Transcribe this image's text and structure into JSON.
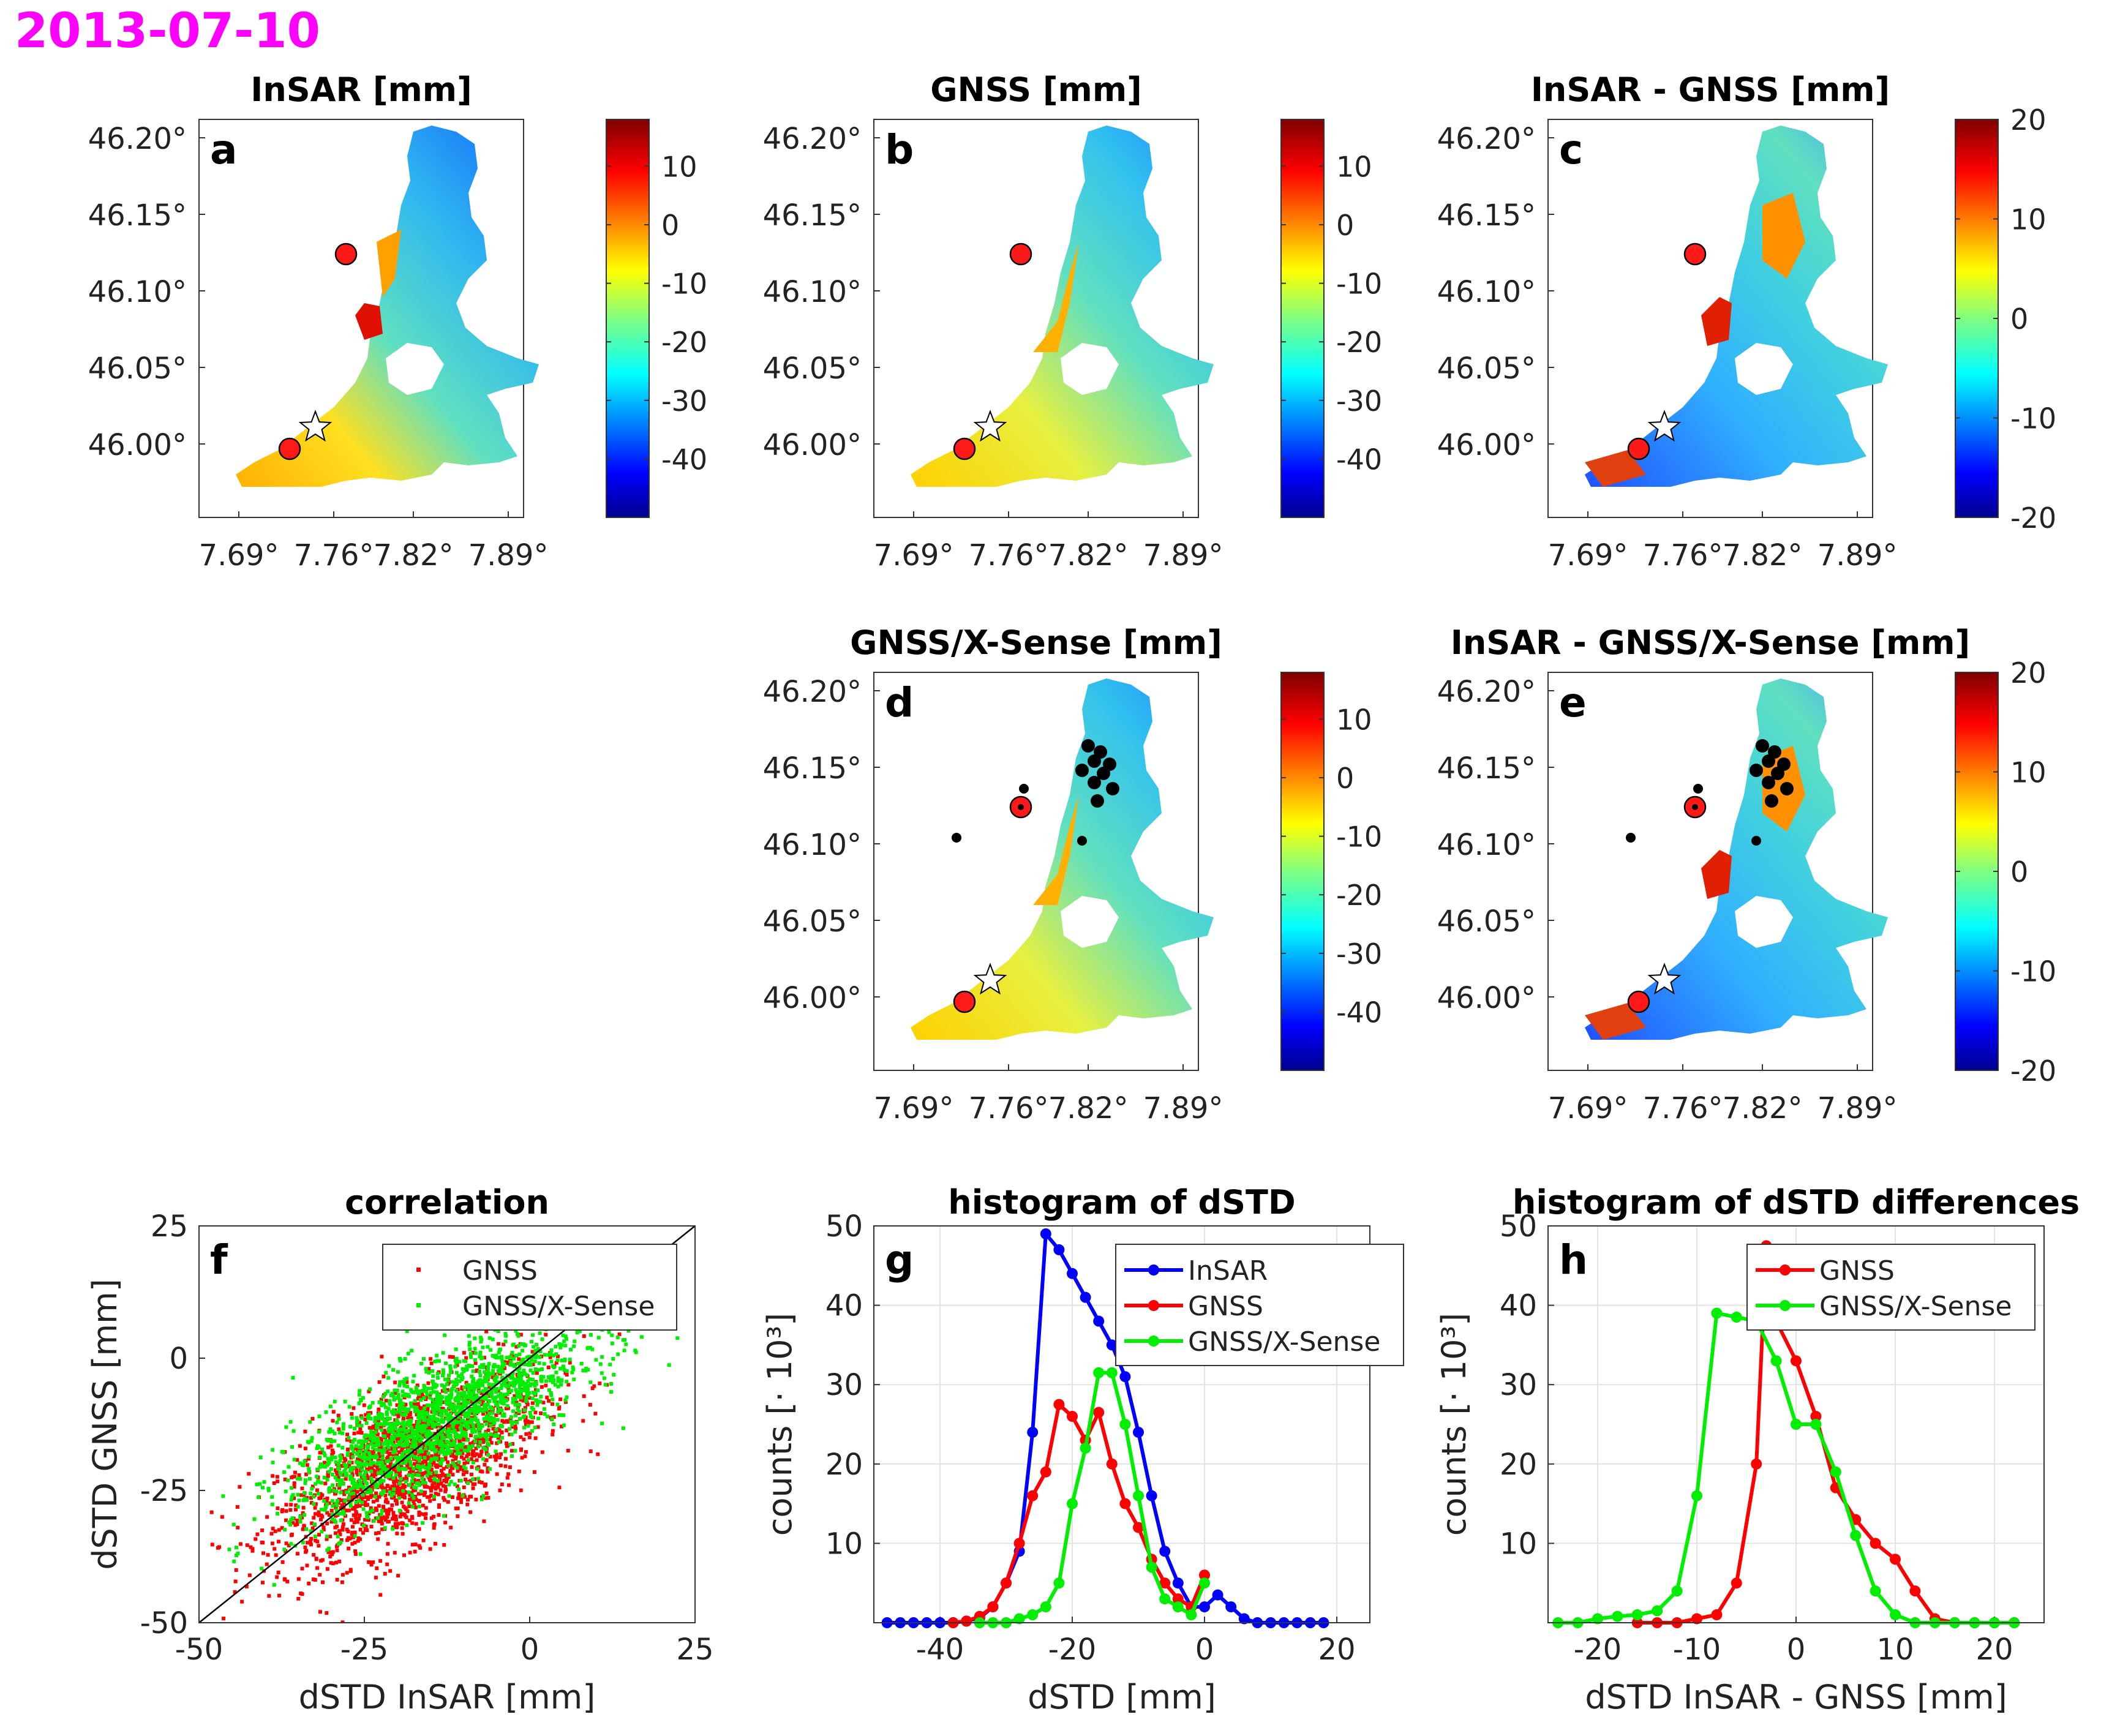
{
  "date_label": "2013-07-10",
  "colors": {
    "date": "#ff00ff",
    "insar": "#0000ff",
    "gnss": "#ff0000",
    "xsense": "#00ee00",
    "station": "#ff0000"
  },
  "maps": [
    {
      "letter": "a",
      "title": "InSAR [mm]",
      "cbar_ticks": [
        "10",
        "0",
        "-10",
        "-20",
        "-30",
        "-40"
      ],
      "cbar_range": [
        -50,
        18
      ],
      "variant": "insar",
      "show_xsense": false
    },
    {
      "letter": "b",
      "title": "GNSS [mm]",
      "cbar_ticks": [
        "10",
        "0",
        "-10",
        "-20",
        "-30",
        "-40"
      ],
      "cbar_range": [
        -50,
        18
      ],
      "variant": "gnss",
      "show_xsense": false
    },
    {
      "letter": "c",
      "title": "InSAR - GNSS [mm]",
      "cbar_ticks": [
        "20",
        "10",
        "0",
        "-10",
        "-20"
      ],
      "cbar_range": [
        -20,
        20
      ],
      "variant": "diff",
      "show_xsense": false
    },
    {
      "letter": "d",
      "title": "GNSS/X-Sense [mm]",
      "cbar_ticks": [
        "10",
        "0",
        "-10",
        "-20",
        "-30",
        "-40"
      ],
      "cbar_range": [
        -50,
        18
      ],
      "variant": "gnss",
      "show_xsense": true
    },
    {
      "letter": "e",
      "title": "InSAR - GNSS/X-Sense [mm]",
      "cbar_ticks": [
        "20",
        "10",
        "0",
        "-10",
        "-20"
      ],
      "cbar_range": [
        -20,
        20
      ],
      "variant": "diff",
      "show_xsense": true
    }
  ],
  "map_axes": {
    "lat_ticks": [
      "46.20°",
      "46.15°",
      "46.10°",
      "46.05°",
      "46.00°"
    ],
    "lon_ticks": [
      "7.69°",
      "7.76°",
      "7.82°",
      "7.89°"
    ]
  },
  "chart_data": [
    {
      "type": "scatter",
      "letter": "f",
      "title": "correlation",
      "xlabel": "dSTD InSAR [mm]",
      "ylabel": "dSTD GNSS [mm]",
      "xlim": [
        -50,
        25
      ],
      "ylim": [
        -50,
        25
      ],
      "xticks": [
        "-50",
        "-25",
        "0",
        "25"
      ],
      "yticks": [
        "25",
        "0",
        "-25",
        "-50"
      ],
      "legend": [
        "GNSS",
        "GNSS/X-Sense"
      ],
      "series": [
        {
          "name": "GNSS",
          "center": [
            -18,
            -20
          ],
          "spread": [
            10,
            7
          ]
        },
        {
          "name": "GNSS/X-Sense",
          "center": [
            -14,
            -12
          ],
          "spread": [
            11,
            6
          ]
        }
      ],
      "reference_line": "y = x"
    },
    {
      "type": "line",
      "letter": "g",
      "title": "histogram of dSTD",
      "xlabel": "dSTD [mm]",
      "ylabel": "counts [· 10³]",
      "xlim": [
        -50,
        25
      ],
      "ylim": [
        0,
        50
      ],
      "xticks": [
        "-40",
        "-20",
        "0",
        "20"
      ],
      "yticks": [
        "50",
        "40",
        "30",
        "20",
        "10"
      ],
      "legend": [
        "InSAR",
        "GNSS",
        "GNSS/X-Sense"
      ],
      "series": [
        {
          "name": "InSAR",
          "x": [
            -48,
            -46,
            -44,
            -42,
            -40,
            -38,
            -36,
            -34,
            -32,
            -30,
            -28,
            -26,
            -24,
            -22,
            -20,
            -18,
            -16,
            -14,
            -12,
            -10,
            -8,
            -6,
            -4,
            -2,
            0,
            2,
            4,
            6,
            8,
            10,
            12,
            14,
            16,
            18
          ],
          "y": [
            0,
            0,
            0,
            0,
            0,
            0,
            0.2,
            0.6,
            2,
            5,
            9,
            24,
            49,
            47,
            44,
            41,
            38,
            35,
            31,
            24,
            16,
            9,
            5,
            2,
            2,
            3.5,
            2,
            0.5,
            0,
            0,
            0,
            0,
            0,
            0
          ]
        },
        {
          "name": "GNSS",
          "x": [
            -38,
            -36,
            -34,
            -32,
            -30,
            -28,
            -26,
            -24,
            -22,
            -20,
            -18,
            -16,
            -14,
            -12,
            -10,
            -8,
            -6,
            -4,
            -2,
            0
          ],
          "y": [
            0,
            0.2,
            0.8,
            2,
            5,
            10,
            16,
            19,
            27.5,
            26,
            23,
            26.5,
            20,
            15,
            12,
            8,
            5,
            3,
            2,
            6
          ]
        },
        {
          "name": "GNSS/X-Sense",
          "x": [
            -34,
            -32,
            -30,
            -28,
            -26,
            -24,
            -22,
            -20,
            -18,
            -16,
            -14,
            -12,
            -10,
            -8,
            -6,
            -4,
            -2,
            0
          ],
          "y": [
            0,
            0,
            0,
            0.5,
            1,
            2,
            5,
            15,
            22,
            31.5,
            31.5,
            25,
            16,
            7,
            3,
            2,
            1,
            5
          ]
        }
      ]
    },
    {
      "type": "line",
      "letter": "h",
      "title": "histogram of dSTD differences",
      "xlabel": "dSTD InSAR - GNSS [mm]",
      "ylabel": "counts [· 10³]",
      "xlim": [
        -25,
        25
      ],
      "ylim": [
        0,
        50
      ],
      "xticks": [
        "-20",
        "-10",
        "0",
        "10",
        "20"
      ],
      "yticks": [
        "50",
        "40",
        "30",
        "20",
        "10"
      ],
      "legend": [
        "GNSS",
        "GNSS/X-Sense"
      ],
      "series": [
        {
          "name": "GNSS",
          "x": [
            -16,
            -14,
            -12,
            -10,
            -8,
            -6,
            -4,
            -3,
            -2,
            0,
            2,
            4,
            6,
            8,
            10,
            12,
            14,
            16,
            18,
            20,
            22
          ],
          "y": [
            0,
            0,
            0,
            0.5,
            1,
            5,
            20,
            47.5,
            38,
            33,
            26,
            17,
            13,
            10,
            8,
            4,
            0.5,
            0,
            0,
            0,
            0
          ]
        },
        {
          "name": "GNSS/X-Sense",
          "x": [
            -24,
            -22,
            -20,
            -18,
            -16,
            -14,
            -12,
            -10,
            -8,
            -6,
            -4,
            -2,
            0,
            2,
            4,
            6,
            8,
            10,
            12,
            14,
            16,
            18,
            20,
            22
          ],
          "y": [
            0,
            0,
            0.5,
            0.8,
            1,
            1.5,
            4,
            16,
            39,
            38.5,
            38,
            33,
            25,
            25,
            19,
            11,
            4,
            1,
            0,
            0,
            0,
            0,
            0,
            0
          ]
        }
      ]
    }
  ]
}
